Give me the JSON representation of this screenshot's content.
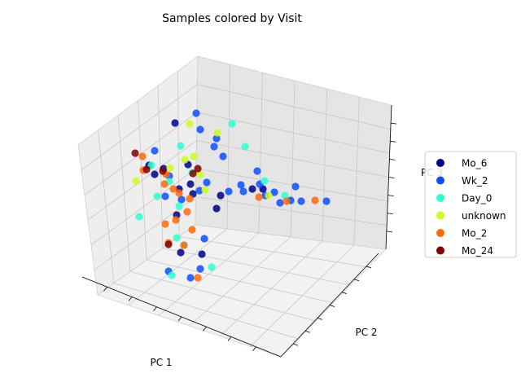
{
  "chart_data": {
    "type": "scatter",
    "projection": "3d",
    "title": "Samples colored by Visit",
    "xlabel": "PC 1",
    "ylabel": "PC 2",
    "zlabel": "PC 3",
    "tick_labels_shown": false,
    "grid": true,
    "legend_position": "right",
    "series": [
      {
        "name": "Mo_6",
        "color": "#00008b",
        "points": [
          [
            190,
            214
          ],
          [
            201,
            207
          ],
          [
            215,
            151
          ],
          [
            231,
            202
          ],
          [
            234,
            226
          ],
          [
            217,
            264
          ],
          [
            237,
            238
          ],
          [
            266,
            256
          ],
          [
            271,
            240
          ],
          [
            310,
            232
          ],
          [
            323,
            232
          ],
          [
            222,
            310
          ],
          [
            248,
            312
          ],
          [
            183,
            203
          ],
          [
            220,
            232
          ]
        ]
      },
      {
        "name": "Wk_2",
        "color": "#0b4fff",
        "points": [
          [
            241,
            139
          ],
          [
            246,
            159
          ],
          [
            266,
            170
          ],
          [
            263,
            180
          ],
          [
            274,
            192
          ],
          [
            190,
            185
          ],
          [
            208,
            216
          ],
          [
            254,
            224
          ],
          [
            281,
            235
          ],
          [
            296,
            227
          ],
          [
            299,
            235
          ],
          [
            319,
            226
          ],
          [
            326,
            240
          ],
          [
            337,
            236
          ],
          [
            344,
            249
          ],
          [
            357,
            246
          ],
          [
            363,
            229
          ],
          [
            370,
            247
          ],
          [
            401,
            247
          ],
          [
            316,
            210
          ],
          [
            245,
            234
          ],
          [
            223,
            245
          ],
          [
            251,
            293
          ],
          [
            246,
            330
          ],
          [
            234,
            341
          ],
          [
            207,
            333
          ],
          [
            203,
            241
          ]
        ]
      },
      {
        "name": "Day_0",
        "color": "#30ffcf",
        "points": [
          [
            285,
            152
          ],
          [
            301,
            180
          ],
          [
            222,
            179
          ],
          [
            186,
            203
          ],
          [
            208,
            223
          ],
          [
            193,
            241
          ],
          [
            220,
            253
          ],
          [
            171,
            266
          ],
          [
            217,
            292
          ],
          [
            226,
            301
          ],
          [
            260,
            328
          ],
          [
            211,
            338
          ],
          [
            236,
            212
          ],
          [
            325,
            222
          ],
          [
            350,
            240
          ]
        ]
      },
      {
        "name": "unknown",
        "color": "#cefc25",
        "points": [
          [
            233,
            152
          ],
          [
            267,
            163
          ],
          [
            227,
            196
          ],
          [
            246,
            214
          ],
          [
            167,
            222
          ],
          [
            209,
            206
          ],
          [
            252,
            233
          ],
          [
            238,
            192
          ],
          [
            330,
            240
          ]
        ]
      },
      {
        "name": "Mo_2",
        "color": "#ff6a0a",
        "points": [
          [
            175,
            192
          ],
          [
            176,
            209
          ],
          [
            204,
            214
          ],
          [
            202,
            226
          ],
          [
            213,
            232
          ],
          [
            233,
            244
          ],
          [
            230,
            260
          ],
          [
            236,
            282
          ],
          [
            203,
            275
          ],
          [
            216,
            270
          ],
          [
            207,
            298
          ],
          [
            226,
            301
          ],
          [
            243,
            341
          ],
          [
            318,
            242
          ],
          [
            352,
            247
          ],
          [
            387,
            246
          ],
          [
            220,
            237
          ]
        ]
      },
      {
        "name": "Mo_24",
        "color": "#800000",
        "points": [
          [
            166,
            188
          ],
          [
            180,
            208
          ],
          [
            237,
            213
          ],
          [
            243,
            207
          ],
          [
            207,
            300
          ],
          [
            200,
            210
          ]
        ]
      }
    ]
  },
  "legend": {
    "items": [
      {
        "label": "Mo_6",
        "color": "#00008b"
      },
      {
        "label": "Wk_2",
        "color": "#0b4fff"
      },
      {
        "label": "Day_0",
        "color": "#30ffcf"
      },
      {
        "label": "unknown",
        "color": "#cefc25"
      },
      {
        "label": "Mo_2",
        "color": "#ff6a0a"
      },
      {
        "label": "Mo_24",
        "color": "#800000"
      }
    ]
  }
}
